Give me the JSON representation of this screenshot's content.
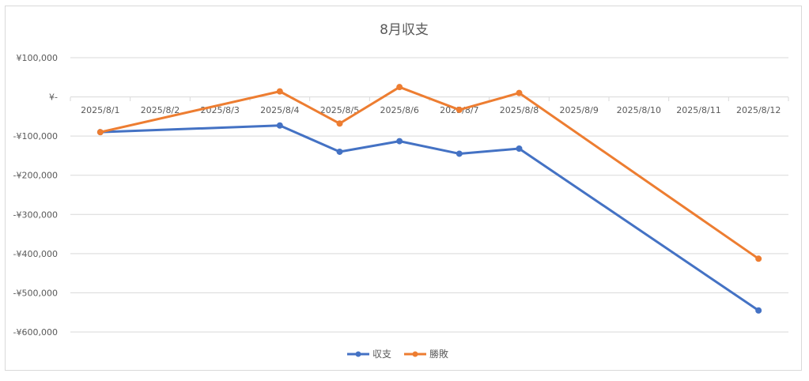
{
  "chart_data": {
    "type": "line",
    "title": "8月収支",
    "categories": [
      "2025/8/1",
      "2025/8/2",
      "2025/8/3",
      "2025/8/4",
      "2025/8/5",
      "2025/8/6",
      "2025/8/7",
      "2025/8/8",
      "2025/8/9",
      "2025/8/10",
      "2025/8/11",
      "2025/8/12"
    ],
    "y_tick_labels": [
      "¥100,000",
      "¥-",
      "-¥100,000",
      "-¥200,000",
      "-¥300,000",
      "-¥400,000",
      "-¥500,000",
      "-¥600,000"
    ],
    "y_ticks": [
      100000,
      0,
      -100000,
      -200000,
      -300000,
      -400000,
      -500000,
      -600000
    ],
    "ylim": [
      -600000,
      100000
    ],
    "grid": true,
    "legend": "bottom",
    "series": [
      {
        "name": "収支",
        "color": "#4472c4",
        "points": [
          {
            "x": "2025/8/1",
            "y": -90000
          },
          {
            "x": "2025/8/4",
            "y": -73000
          },
          {
            "x": "2025/8/5",
            "y": -140000
          },
          {
            "x": "2025/8/6",
            "y": -113000
          },
          {
            "x": "2025/8/7",
            "y": -145000
          },
          {
            "x": "2025/8/8",
            "y": -132000
          },
          {
            "x": "2025/8/12",
            "y": -545000
          }
        ]
      },
      {
        "name": "勝敗",
        "color": "#ed7d31",
        "points": [
          {
            "x": "2025/8/1",
            "y": -90000
          },
          {
            "x": "2025/8/4",
            "y": 14000
          },
          {
            "x": "2025/8/5",
            "y": -68000
          },
          {
            "x": "2025/8/6",
            "y": 25000
          },
          {
            "x": "2025/8/7",
            "y": -33000
          },
          {
            "x": "2025/8/8",
            "y": 10000
          },
          {
            "x": "2025/8/12",
            "y": -413000
          }
        ]
      }
    ]
  }
}
